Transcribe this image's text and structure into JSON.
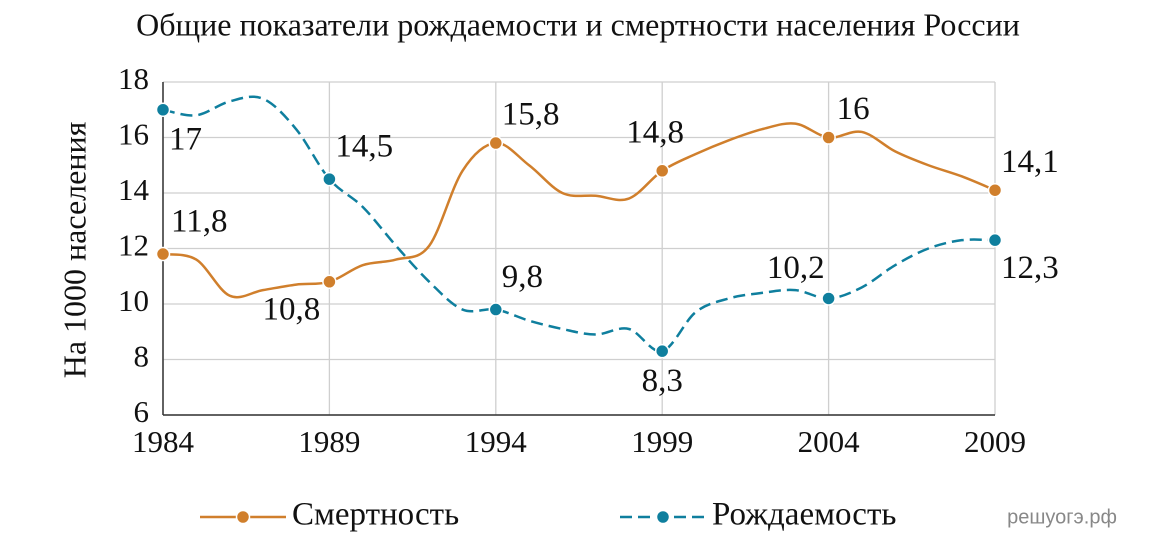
{
  "chart_data": {
    "type": "line",
    "title": "Общие показатели рождаемости и смертности населения России",
    "y_label": "На 1000 населения",
    "watermark": "решуогэ.рф",
    "x": [
      1984,
      1985,
      1986,
      1987,
      1988,
      1989,
      1990,
      1991,
      1992,
      1993,
      1994,
      1995,
      1996,
      1997,
      1998,
      1999,
      2000,
      2001,
      2002,
      2003,
      2004,
      2005,
      2006,
      2007,
      2008,
      2009
    ],
    "xlim": [
      1984,
      2009
    ],
    "xticks": [
      1984,
      1989,
      1994,
      1999,
      2004,
      2009
    ],
    "ylim": [
      6,
      18
    ],
    "yticks": [
      6,
      8,
      10,
      12,
      14,
      16,
      18
    ],
    "grid": true,
    "series": [
      {
        "name": "Смертность",
        "color": "#d07f2c",
        "style": "solid",
        "values": [
          11.8,
          11.6,
          10.3,
          10.5,
          10.7,
          10.8,
          11.4,
          11.6,
          12.1,
          14.8,
          15.8,
          15.0,
          14.0,
          13.9,
          13.8,
          14.8,
          15.4,
          15.9,
          16.3,
          16.5,
          16.0,
          16.2,
          15.5,
          15.0,
          14.6,
          14.1
        ],
        "value_labels": [
          "11,8",
          null,
          null,
          null,
          null,
          "10,8",
          null,
          null,
          null,
          null,
          "15,8",
          null,
          null,
          null,
          null,
          "14,8",
          null,
          null,
          null,
          null,
          "16",
          null,
          null,
          null,
          null,
          "14,1"
        ]
      },
      {
        "name": "Рождаемость",
        "color": "#0f7f9e",
        "style": "dashed",
        "values": [
          17,
          16.8,
          17.3,
          17.4,
          16.3,
          14.5,
          13.5,
          12.1,
          10.8,
          9.8,
          9.8,
          9.4,
          9.1,
          8.9,
          9.1,
          8.3,
          9.7,
          10.2,
          10.4,
          10.5,
          10.2,
          10.6,
          11.4,
          12.0,
          12.3,
          12.3
        ],
        "value_labels": [
          "17",
          null,
          null,
          null,
          null,
          "14,5",
          null,
          null,
          null,
          null,
          "9,8",
          null,
          null,
          null,
          null,
          "8,3",
          null,
          null,
          null,
          null,
          "10,2",
          null,
          null,
          null,
          null,
          "12,3"
        ]
      }
    ]
  }
}
